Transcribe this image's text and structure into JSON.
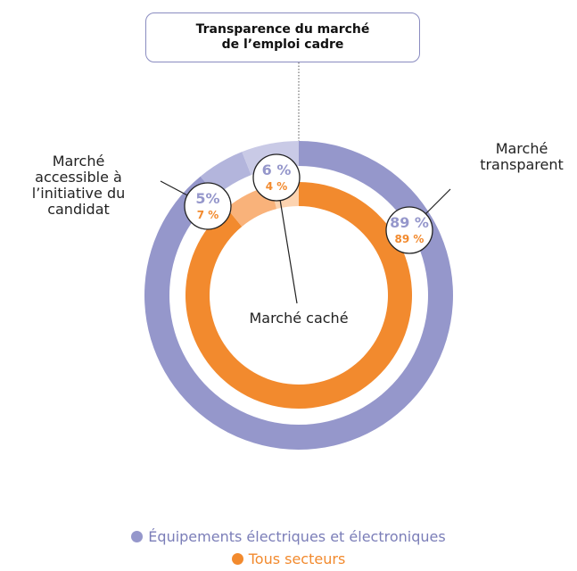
{
  "chart_data": {
    "type": "donut",
    "title": "Transparence du marché de l’emploi cadre",
    "categories": [
      "Marché transparent",
      "Marché accessible à l’initiative du candidat",
      "Marché caché"
    ],
    "series": [
      {
        "name": "Équipements électriques et électroniques",
        "color": "#9597cb",
        "colors": [
          "#9597cb",
          "#b3b5dc",
          "#c9cae6"
        ],
        "values": [
          89,
          5,
          6
        ],
        "value_labels": [
          "89 %",
          "5%",
          "6 %"
        ]
      },
      {
        "name": "Tous secteurs",
        "color": "#f28a2e",
        "colors": [
          "#f28a2e",
          "#f9b27a",
          "#fcd3b0"
        ],
        "values": [
          89,
          7,
          4
        ],
        "value_labels": [
          "89 %",
          "7 %",
          "4 %"
        ]
      }
    ]
  }
}
